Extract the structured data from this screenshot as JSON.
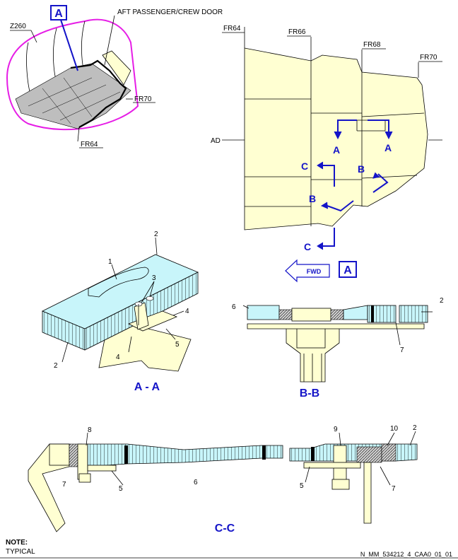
{
  "view_a": {
    "callout": "A",
    "label_z": "Z260",
    "label_door": "AFT PASSENGER/CREW DOOR",
    "label_fr70": "FR70",
    "label_fr64": "FR64"
  },
  "panel_view": {
    "fr64": "FR64",
    "fr66": "FR66",
    "fr68": "FR68",
    "fr70": "FR70",
    "ad": "AD",
    "arrow_a1": "A",
    "arrow_a2": "A",
    "arrow_b1": "B",
    "arrow_b2": "B",
    "arrow_c1": "C",
    "arrow_c2": "C",
    "fwd": "FWD",
    "view_a": "A"
  },
  "section_aa": {
    "title": "A - A",
    "items": [
      "1",
      "2",
      "2",
      "3",
      "4",
      "4",
      "5"
    ]
  },
  "section_bb": {
    "title": "B-B",
    "items": [
      "6",
      "2",
      "7"
    ]
  },
  "section_cc": {
    "title": "C-C",
    "items": [
      "8",
      "7",
      "5",
      "6",
      "9",
      "10",
      "2",
      "5",
      "7"
    ]
  },
  "note": {
    "heading": "NOTE:",
    "text": "TYPICAL"
  },
  "ref": "N_MM_534212_4_CAA0_01_01",
  "colors": {
    "panel": "#ffffd2",
    "core": "#c8f5fa",
    "callout_blue": "#1414c8",
    "outline_magenta": "#e61ee6",
    "floor_grey": "#bebebe"
  }
}
